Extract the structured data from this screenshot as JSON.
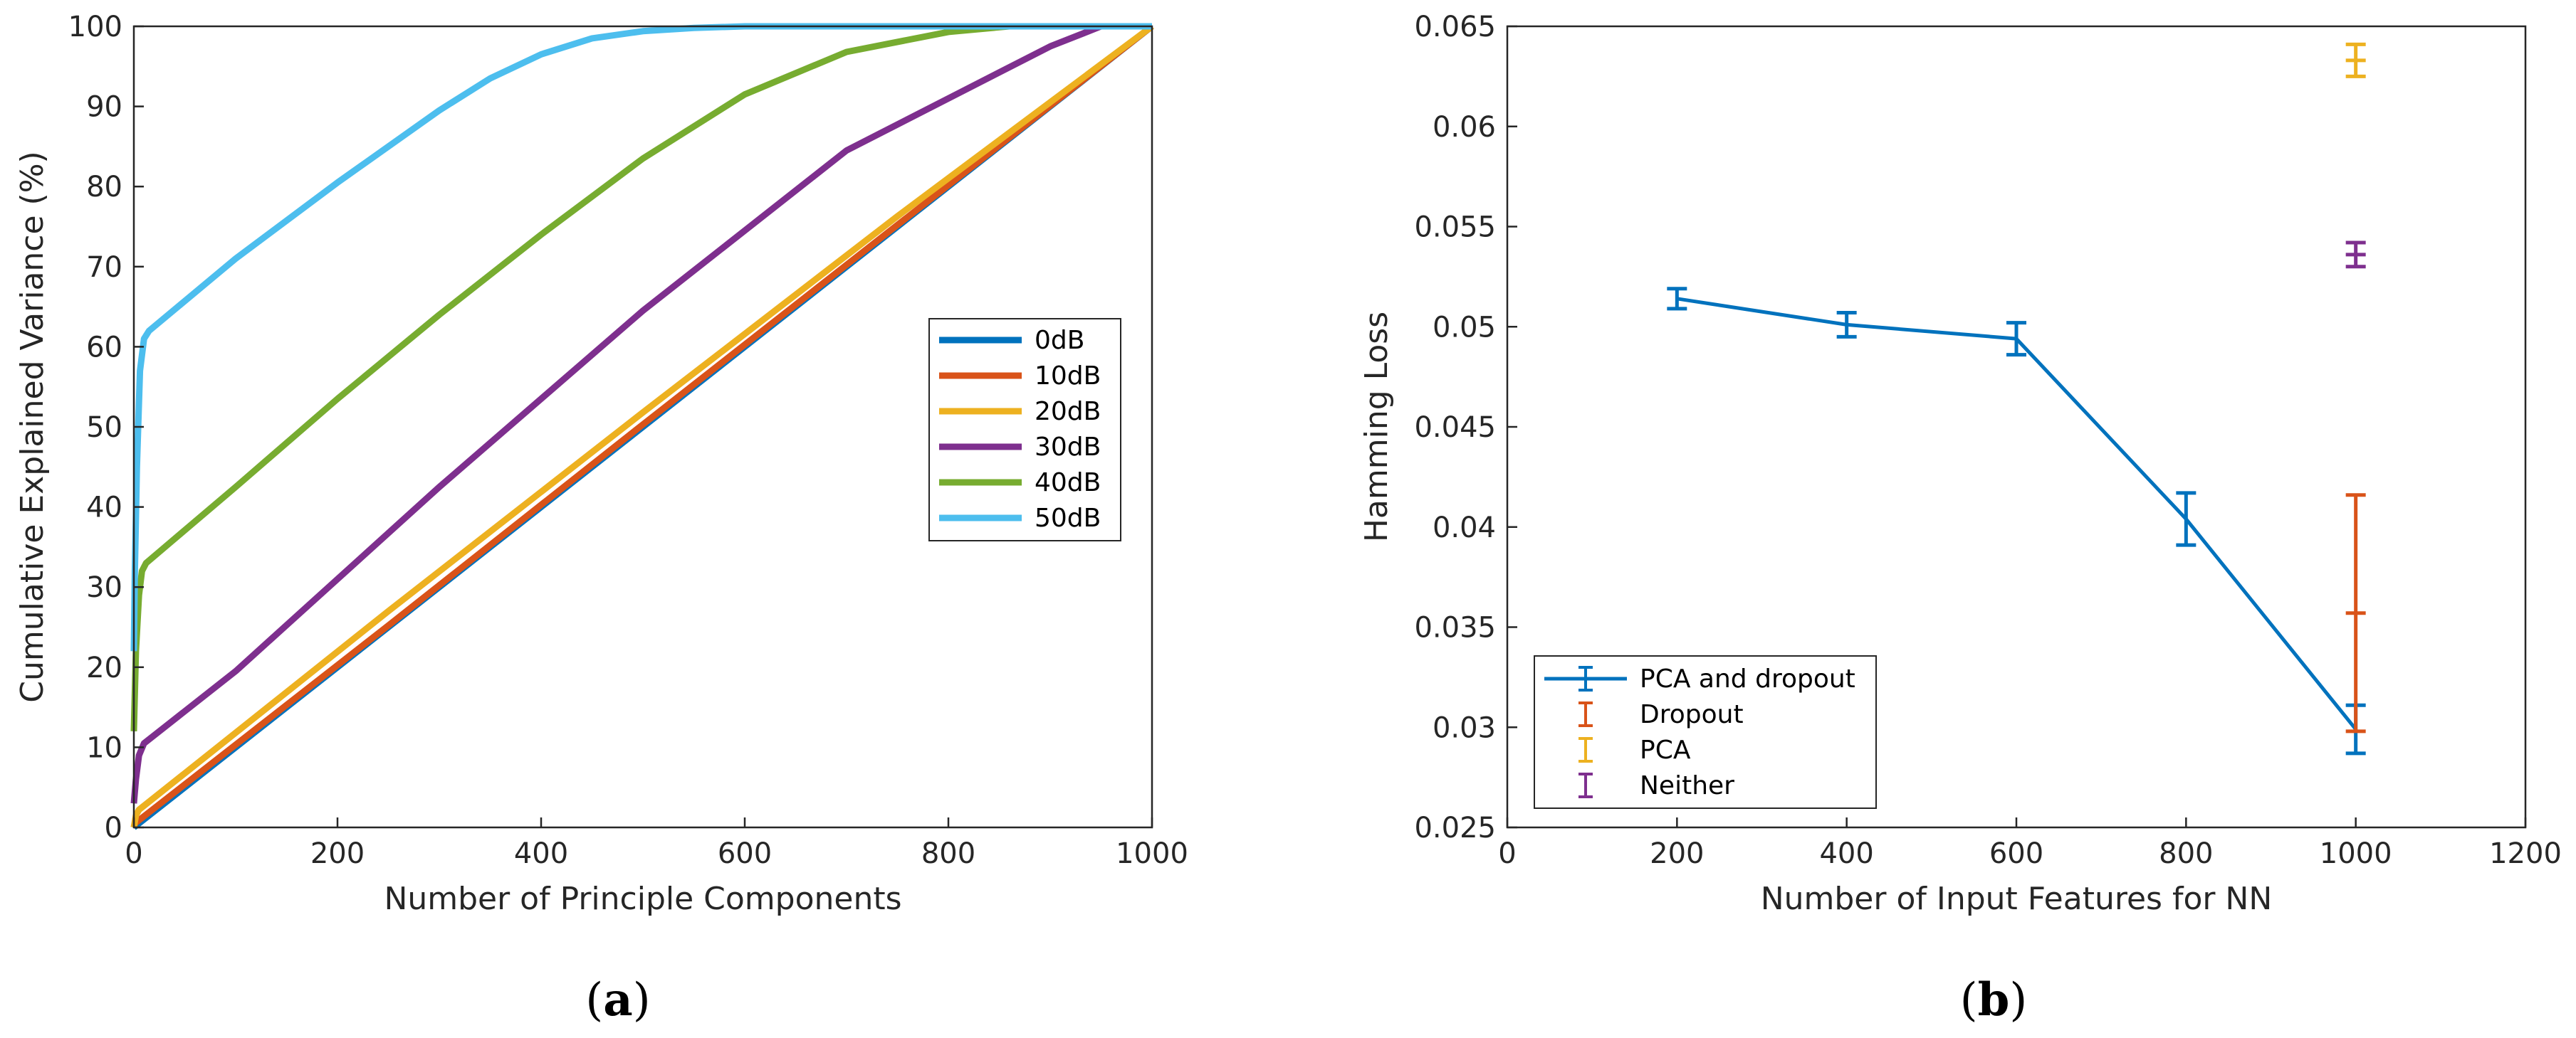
{
  "chart_data": [
    {
      "id": "a",
      "type": "line",
      "subfigure_label": {
        "open": "(",
        "letter": "a",
        "close": ")"
      },
      "xlabel": "Number of Principle Components",
      "ylabel": "Cumulative Explained Variance (%)",
      "xlim": [
        0,
        1000
      ],
      "ylim": [
        0,
        100
      ],
      "xticks": [
        0,
        200,
        400,
        600,
        800,
        1000
      ],
      "yticks": [
        0,
        10,
        20,
        30,
        40,
        50,
        60,
        70,
        80,
        90,
        100
      ],
      "legend_position": "center-right",
      "series": [
        {
          "name": "0dB",
          "color": "#0072BD",
          "x": [
            0,
            1000
          ],
          "y": [
            0,
            100
          ]
        },
        {
          "name": "10dB",
          "color": "#D95319",
          "x": [
            0,
            1,
            250,
            500,
            750,
            1000
          ],
          "y": [
            0,
            0.5,
            25.2,
            50.3,
            75.2,
            100
          ]
        },
        {
          "name": "20dB",
          "color": "#EDB120",
          "x": [
            0,
            2,
            5,
            250,
            500,
            750,
            1000
          ],
          "y": [
            0,
            1.5,
            2.2,
            27.0,
            51.8,
            76.3,
            100
          ]
        },
        {
          "name": "30dB",
          "color": "#7E2F8E",
          "x": [
            0,
            2,
            5,
            10,
            100,
            300,
            500,
            700,
            900,
            950,
            1000
          ],
          "y": [
            3,
            6,
            9,
            10.5,
            19.5,
            42.5,
            64.5,
            84.5,
            97.5,
            100,
            100
          ]
        },
        {
          "name": "40dB",
          "color": "#77AC30",
          "x": [
            0,
            2,
            5,
            8,
            12,
            100,
            200,
            300,
            400,
            500,
            600,
            700,
            800,
            860,
            900,
            1000
          ],
          "y": [
            12,
            22,
            29,
            32,
            33,
            42.5,
            53.5,
            64,
            74,
            83.5,
            91.5,
            96.8,
            99.3,
            100,
            100,
            100
          ]
        },
        {
          "name": "50dB",
          "color": "#4DBEEE",
          "x": [
            0,
            1,
            3,
            6,
            10,
            15,
            100,
            200,
            300,
            350,
            400,
            450,
            500,
            550,
            600,
            700,
            1000
          ],
          "y": [
            22,
            32,
            45,
            57,
            61,
            62,
            71,
            80.5,
            89.5,
            93.5,
            96.5,
            98.5,
            99.4,
            99.8,
            100,
            100,
            100
          ]
        }
      ]
    },
    {
      "id": "b",
      "type": "errorbar",
      "subfigure_label": {
        "open": "(",
        "letter": "b",
        "close": ")"
      },
      "xlabel": "Number of Input Features for NN",
      "ylabel": "Hamming Loss",
      "xlim": [
        0,
        1200
      ],
      "ylim": [
        0.025,
        0.065
      ],
      "xticks": [
        0,
        200,
        400,
        600,
        800,
        1000,
        1200
      ],
      "yticks": [
        0.025,
        0.03,
        0.035,
        0.04,
        0.045,
        0.05,
        0.055,
        0.06,
        0.065
      ],
      "ytick_labels": [
        "0.025",
        "0.03",
        "0.035",
        "0.04",
        "0.045",
        "0.05",
        "0.055",
        "0.06",
        "0.065"
      ],
      "legend_position": "bottom-left",
      "series": [
        {
          "name": "PCA and dropout",
          "color": "#0072BD",
          "line": true,
          "x": [
            200,
            400,
            600,
            800,
            1000
          ],
          "y": [
            0.0514,
            0.0501,
            0.0494,
            0.0404,
            0.0299
          ],
          "err": [
            0.0005,
            0.0006,
            0.0008,
            0.0013,
            0.0012
          ]
        },
        {
          "name": "Dropout",
          "color": "#D95319",
          "line": false,
          "x": [
            1000
          ],
          "y": [
            0.0357
          ],
          "err": [
            0.0059
          ]
        },
        {
          "name": "PCA",
          "color": "#EDB120",
          "line": false,
          "x": [
            1000
          ],
          "y": [
            0.0633
          ],
          "err": [
            0.0008
          ]
        },
        {
          "name": "Neither",
          "color": "#7E2F8E",
          "line": false,
          "x": [
            1000
          ],
          "y": [
            0.0536
          ],
          "err": [
            0.0006
          ]
        }
      ]
    }
  ]
}
